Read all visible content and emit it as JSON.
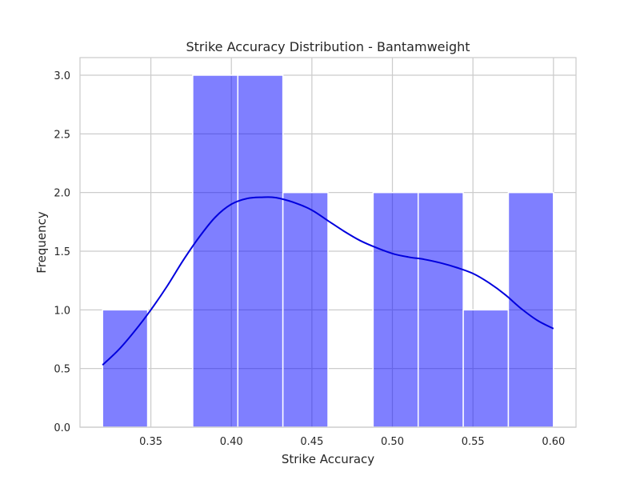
{
  "chart_data": {
    "type": "bar",
    "title": "Strike Accuracy Distribution - Bantamweight",
    "xlabel": "Strike Accuracy",
    "ylabel": "Frequency",
    "xlim": [
      0.306,
      0.614
    ],
    "ylim": [
      0,
      3.15
    ],
    "x_ticks": [
      0.35,
      0.4,
      0.45,
      0.5,
      0.55,
      0.6
    ],
    "x_tick_labels": [
      "0.35",
      "0.40",
      "0.45",
      "0.50",
      "0.55",
      "0.60"
    ],
    "y_ticks": [
      0,
      0.5,
      1.0,
      1.5,
      2.0,
      2.5,
      3.0
    ],
    "y_tick_labels": [
      "0.0",
      "0.5",
      "1.0",
      "1.5",
      "2.0",
      "2.5",
      "3.0"
    ],
    "grid": true,
    "bar_color": "#0000ff",
    "bar_alpha": 0.5,
    "kde_color": "#0000dd",
    "bins": [
      {
        "start": 0.32,
        "end": 0.348,
        "count": 1
      },
      {
        "start": 0.348,
        "end": 0.376,
        "count": 0
      },
      {
        "start": 0.376,
        "end": 0.404,
        "count": 3
      },
      {
        "start": 0.404,
        "end": 0.432,
        "count": 3
      },
      {
        "start": 0.432,
        "end": 0.46,
        "count": 2
      },
      {
        "start": 0.46,
        "end": 0.488,
        "count": 0
      },
      {
        "start": 0.488,
        "end": 0.516,
        "count": 2
      },
      {
        "start": 0.516,
        "end": 0.544,
        "count": 2
      },
      {
        "start": 0.544,
        "end": 0.572,
        "count": 1
      },
      {
        "start": 0.572,
        "end": 0.6,
        "count": 2
      }
    ],
    "kde_curve": {
      "x": [
        0.32,
        0.33,
        0.34,
        0.35,
        0.36,
        0.37,
        0.38,
        0.39,
        0.4,
        0.41,
        0.42,
        0.425,
        0.43,
        0.44,
        0.45,
        0.46,
        0.47,
        0.48,
        0.49,
        0.5,
        0.51,
        0.52,
        0.53,
        0.54,
        0.55,
        0.56,
        0.57,
        0.58,
        0.59,
        0.6
      ],
      "y": [
        0.53,
        0.66,
        0.82,
        1.0,
        1.2,
        1.42,
        1.62,
        1.79,
        1.9,
        1.95,
        1.96,
        1.96,
        1.95,
        1.91,
        1.85,
        1.76,
        1.67,
        1.59,
        1.53,
        1.48,
        1.45,
        1.43,
        1.4,
        1.36,
        1.31,
        1.23,
        1.13,
        1.01,
        0.91,
        0.84
      ]
    }
  }
}
